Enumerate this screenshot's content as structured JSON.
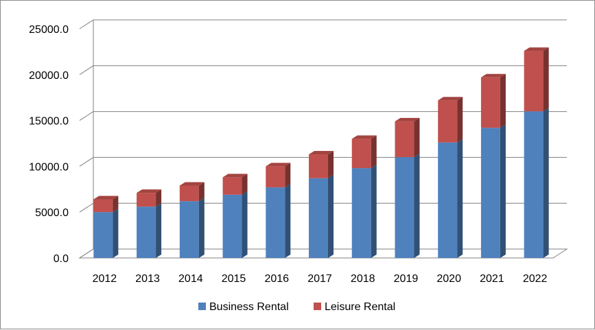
{
  "chart_data": {
    "type": "bar",
    "stacked": true,
    "three_d": true,
    "title": "",
    "xlabel": "",
    "ylabel": "",
    "categories": [
      "2012",
      "2013",
      "2014",
      "2015",
      "2016",
      "2017",
      "2018",
      "2019",
      "2020",
      "2021",
      "2022"
    ],
    "series": [
      {
        "name": "Business Rental",
        "color": "#4f81bd",
        "values": [
          5000,
          5600,
          6200,
          6900,
          7700,
          8700,
          9800,
          11000,
          12600,
          14200,
          16000
        ]
      },
      {
        "name": "Leisure Rental",
        "color": "#c0504d",
        "values": [
          1400,
          1500,
          1700,
          1900,
          2300,
          2600,
          3200,
          3900,
          4600,
          5500,
          6600
        ]
      }
    ],
    "ylim": [
      0,
      25000
    ],
    "yticks": [
      "0.0",
      "5000.0",
      "10000.0",
      "15000.0",
      "20000.0",
      "25000.0"
    ],
    "grid": true,
    "legend_position": "bottom"
  }
}
